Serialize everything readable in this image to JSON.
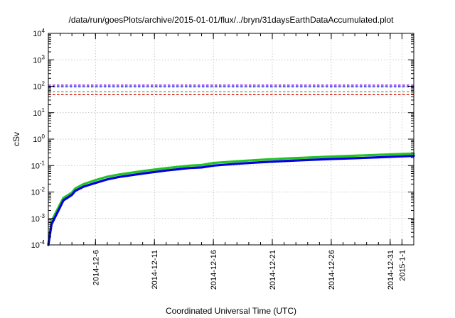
{
  "chart_data": {
    "type": "line",
    "title": "/data/run/goesPlots/archive/2015-01-01/flux/../bryn/31daysEarthDataAccumulated.plot",
    "xlabel": "Coordinated Universal Time (UTC)",
    "ylabel": "cSv",
    "y_scale": "log",
    "ylim": [
      0.0001,
      10000
    ],
    "y_ticks": [
      {
        "base": "10",
        "exp": "-4",
        "value": 0.0001
      },
      {
        "base": "10",
        "exp": "-3",
        "value": 0.001
      },
      {
        "base": "10",
        "exp": "-2",
        "value": 0.01
      },
      {
        "base": "10",
        "exp": "-1",
        "value": 0.1
      },
      {
        "base": "10",
        "exp": "0",
        "value": 1
      },
      {
        "base": "10",
        "exp": "1",
        "value": 10
      },
      {
        "base": "10",
        "exp": "2",
        "value": 100
      },
      {
        "base": "10",
        "exp": "3",
        "value": 1000
      },
      {
        "base": "10",
        "exp": "4",
        "value": 10000
      }
    ],
    "xlim": [
      "2014-12-02",
      "2015-01-02"
    ],
    "x_ticks": [
      "2014-12-6",
      "2014-12-11",
      "2014-12-16",
      "2014-12-21",
      "2014-12-26",
      "2014-12-31",
      "2015-1-1"
    ],
    "x_tick_dates": [
      "2014-12-06",
      "2014-12-11",
      "2014-12-16",
      "2014-12-21",
      "2014-12-26",
      "2014-12-31",
      "2015-01-01"
    ],
    "grid": true,
    "legend": "none",
    "thresholds": [
      {
        "value": 110,
        "color": "#9400d3"
      },
      {
        "value": 95,
        "color": "#0000ff"
      },
      {
        "value": 62,
        "color": "#22c422"
      },
      {
        "value": 48,
        "color": "#e00000"
      }
    ],
    "series": [
      {
        "color": "#22c422",
        "x": [
          "2014-12-02",
          "2014-12-02",
          "2014-12-03",
          "2014-12-03",
          "2014-12-04",
          "2014-12-04",
          "2014-12-05",
          "2014-12-06",
          "2014-12-07",
          "2014-12-08",
          "2014-12-10",
          "2014-12-12",
          "2014-12-14",
          "2014-12-15",
          "2014-12-16",
          "2014-12-18",
          "2014-12-20",
          "2014-12-22",
          "2014-12-24",
          "2014-12-26",
          "2014-12-28",
          "2014-12-30",
          "2015-01-01",
          "2015-01-02"
        ],
        "y": [
          0.0001,
          0.0008,
          0.0035,
          0.006,
          0.0095,
          0.0135,
          0.02,
          0.028,
          0.038,
          0.046,
          0.062,
          0.08,
          0.1,
          0.105,
          0.125,
          0.145,
          0.165,
          0.185,
          0.2,
          0.22,
          0.235,
          0.255,
          0.275,
          0.285
        ]
      },
      {
        "color": "#0000e0",
        "x": [
          "2014-12-02",
          "2014-12-02",
          "2014-12-03",
          "2014-12-03",
          "2014-12-04",
          "2014-12-04",
          "2014-12-05",
          "2014-12-06",
          "2014-12-07",
          "2014-12-08",
          "2014-12-10",
          "2014-12-12",
          "2014-12-14",
          "2014-12-15",
          "2014-12-16",
          "2014-12-18",
          "2014-12-20",
          "2014-12-22",
          "2014-12-24",
          "2014-12-26",
          "2014-12-28",
          "2014-12-30",
          "2015-01-01",
          "2015-01-02"
        ],
        "y": [
          0.0001,
          0.0006,
          0.0027,
          0.0048,
          0.0078,
          0.011,
          0.016,
          0.022,
          0.03,
          0.037,
          0.05,
          0.065,
          0.081,
          0.085,
          0.1,
          0.117,
          0.133,
          0.148,
          0.162,
          0.177,
          0.19,
          0.205,
          0.222,
          0.232
        ]
      }
    ]
  }
}
